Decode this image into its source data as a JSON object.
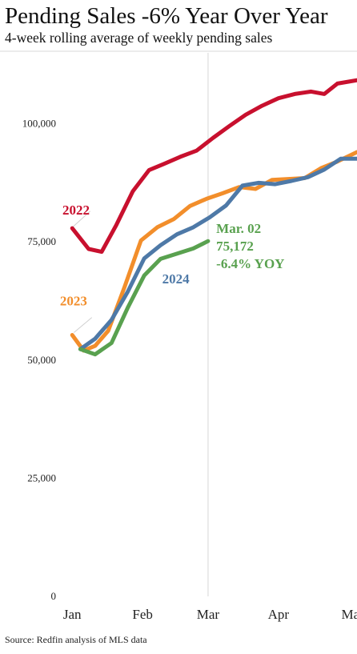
{
  "chart_data": {
    "type": "line",
    "title": "Pending Sales -6% Year Over Year",
    "subtitle": "4-week rolling average of weekly pending sales",
    "source": "Source: Redfin analysis of MLS data",
    "xlabel": "",
    "ylabel": "",
    "ylim": [
      0,
      115000
    ],
    "yticks": [
      {
        "value": 0,
        "label": "0"
      },
      {
        "value": 25000,
        "label": "25,000"
      },
      {
        "value": 50000,
        "label": "50,000"
      },
      {
        "value": 75000,
        "label": "75,000"
      },
      {
        "value": 100000,
        "label": "100,000"
      }
    ],
    "xticks": [
      {
        "week": 0,
        "label": "Jan"
      },
      {
        "week": 4.3,
        "label": "Feb"
      },
      {
        "week": 8.3,
        "label": "Mar"
      },
      {
        "week": 12.6,
        "label": "Apr"
      },
      {
        "week": 17,
        "label": "Ma"
      }
    ],
    "xlim": [
      -0.5,
      17.4
    ],
    "grid": false,
    "reference_line_week": 8.3,
    "series": [
      {
        "name": "2022",
        "color": "#c8102e",
        "x": [
          0,
          1,
          1.8,
          2.7,
          3.7,
          4.7,
          5.6,
          6.6,
          7.6,
          8.6,
          9.6,
          10.6,
          11.6,
          12.6,
          13.6,
          14.6,
          15.4,
          16.2,
          17.4
        ],
        "values": [
          77900,
          73500,
          72900,
          78600,
          85700,
          90200,
          91500,
          93000,
          94300,
          97000,
          99500,
          101900,
          103800,
          105400,
          106300,
          106800,
          106300,
          108500,
          109200
        ]
      },
      {
        "name": "2023",
        "color": "#f28e2b",
        "x": [
          0,
          0.7,
          1.4,
          2.2,
          3.2,
          4.2,
          5.2,
          6.2,
          7.2,
          8.2,
          9.2,
          10.2,
          11.2,
          12.2,
          13.2,
          14.2,
          15.2,
          16.2,
          17.4
        ],
        "values": [
          55300,
          52000,
          53000,
          56200,
          65500,
          75300,
          78100,
          79800,
          82600,
          84100,
          85300,
          86600,
          86200,
          88100,
          88300,
          88500,
          90600,
          92000,
          94000
        ]
      },
      {
        "name": "2024",
        "color": "#4e79a7",
        "x": [
          0.5,
          1.4,
          2.4,
          3.4,
          4.4,
          5.4,
          6.4,
          7.4,
          8.4,
          9.4,
          10.4,
          11.4,
          12.4,
          13.4,
          14.4,
          15.4,
          16.4,
          17.4
        ],
        "values": [
          52300,
          54500,
          58500,
          64500,
          71500,
          74300,
          76600,
          78100,
          80200,
          82700,
          86900,
          87500,
          87200,
          87900,
          88700,
          90300,
          92600,
          92600
        ]
      },
      {
        "name": "2024 YTD",
        "color": "#59a14f",
        "x": [
          0.5,
          1.4,
          2.4,
          3.4,
          4.4,
          5.4,
          6.4,
          7.4,
          8.3
        ],
        "values": [
          52300,
          51200,
          53600,
          61100,
          67900,
          71400,
          72500,
          73600,
          75172
        ]
      }
    ],
    "series_labels": [
      {
        "text": "2022",
        "color": "#c8102e",
        "at_week": -0.6,
        "at_value": 80800,
        "leader_from": [
          1.1,
          81500
        ],
        "leader_to": [
          0.05,
          78200
        ]
      },
      {
        "text": "2023",
        "color": "#f28e2b",
        "at_week": -0.75,
        "at_value": 61600,
        "leader_from": [
          1.2,
          59000
        ],
        "leader_to": [
          0.1,
          55800
        ]
      },
      {
        "text": "2024",
        "color": "#4e79a7",
        "at_week": 5.5,
        "at_value": 66200
      }
    ],
    "annotation": {
      "color": "#59a14f",
      "lines": [
        "Mar. 02",
        "75,172",
        "-6.4% YOY"
      ],
      "at_week": 8.8,
      "at_value": 76900
    }
  }
}
